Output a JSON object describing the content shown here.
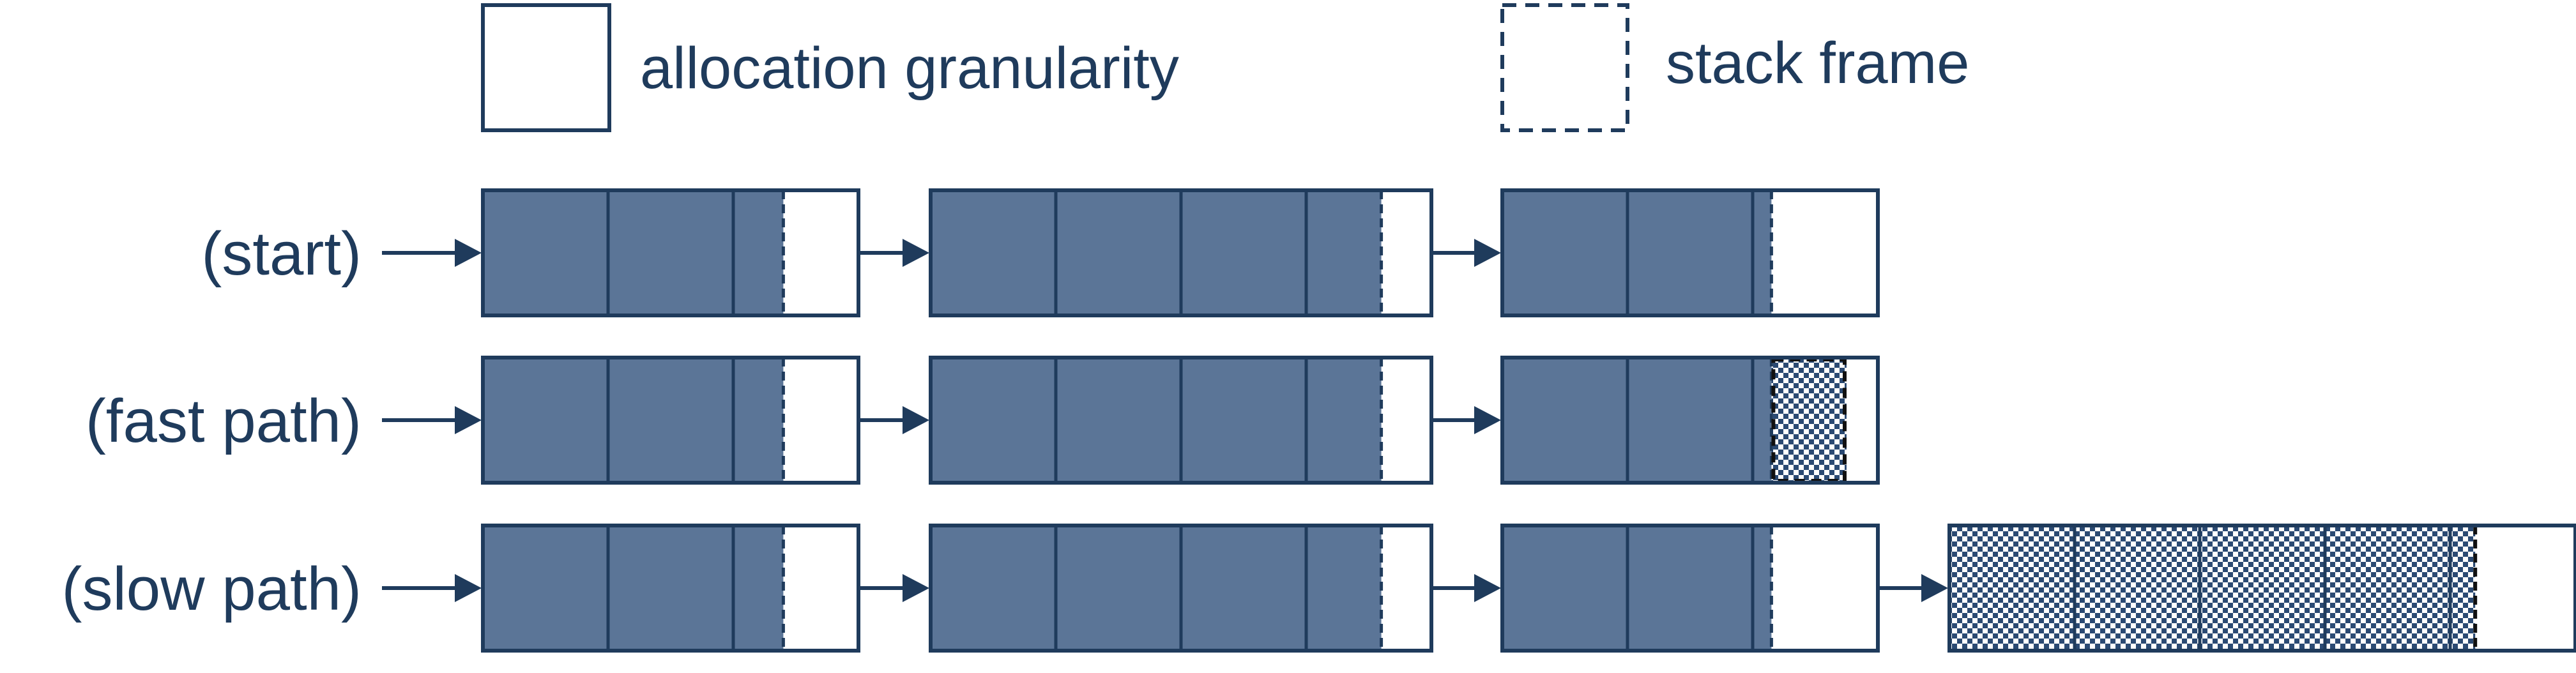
{
  "colors": {
    "outline": "#1f3b5c",
    "filled": "#5b7597",
    "empty": "#ffffff",
    "checker_dark": "#2b4a73",
    "checker_light": "#ffffff"
  },
  "legend": {
    "allocation_label": "allocation granularity",
    "stack_frame_label": "stack frame"
  },
  "rows": [
    {
      "label": "(start)",
      "chunks": [
        {
          "units": 3,
          "used": 2.4,
          "frame": null
        },
        {
          "units": 4,
          "used": 3.6,
          "frame": null
        },
        {
          "units": 3,
          "used": 2.15,
          "frame": null
        }
      ]
    },
    {
      "label": "(fast path)",
      "chunks": [
        {
          "units": 3,
          "used": 2.4,
          "frame": null
        },
        {
          "units": 4,
          "used": 3.6,
          "frame": null
        },
        {
          "units": 3,
          "used": 2.15,
          "frame": [
            2.15,
            2.75
          ]
        }
      ]
    },
    {
      "label": "(slow path)",
      "chunks": [
        {
          "units": 3,
          "used": 2.4,
          "frame": null
        },
        {
          "units": 4,
          "used": 3.6,
          "frame": null
        },
        {
          "units": 3,
          "used": 2.15,
          "frame": null
        },
        {
          "units": 5,
          "used": 0,
          "frame": [
            0,
            4.2
          ]
        }
      ]
    }
  ]
}
